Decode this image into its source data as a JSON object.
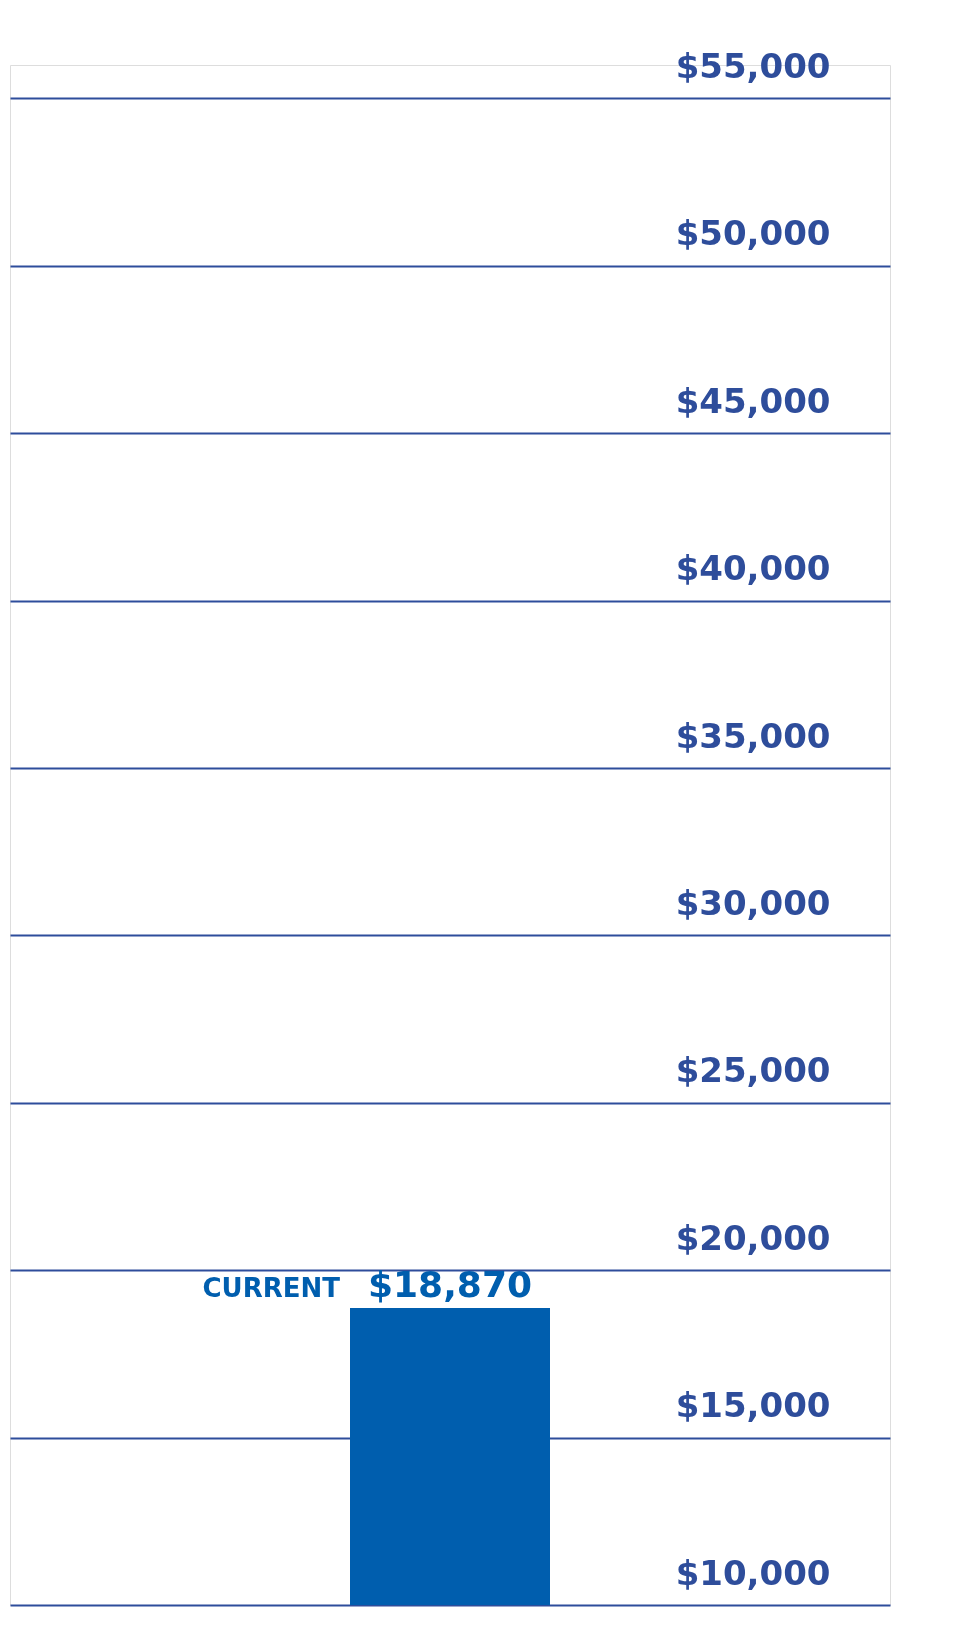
{
  "chart_data": {
    "type": "bar",
    "categories": [
      null
    ],
    "values": [
      18870
    ],
    "color": "#005eae",
    "value_labels": [
      "$18,870"
    ],
    "annotations": [
      "CURRENT"
    ],
    "ylim": [
      10000,
      56000
    ],
    "yticks": [
      {
        "value": 10000,
        "label": "$10,000"
      },
      {
        "value": 15000,
        "label": "$15,000"
      },
      {
        "value": 20000,
        "label": "$20,000"
      },
      {
        "value": 25000,
        "label": "$25,000"
      },
      {
        "value": 30000,
        "label": "$30,000"
      },
      {
        "value": 35000,
        "label": "$35,000"
      },
      {
        "value": 40000,
        "label": "$40,000"
      },
      {
        "value": 45000,
        "label": "$45,000"
      },
      {
        "value": 50000,
        "label": "$50,000"
      },
      {
        "value": 55000,
        "label": "$55,000"
      }
    ],
    "grid": "y",
    "tick_labels": "y"
  }
}
